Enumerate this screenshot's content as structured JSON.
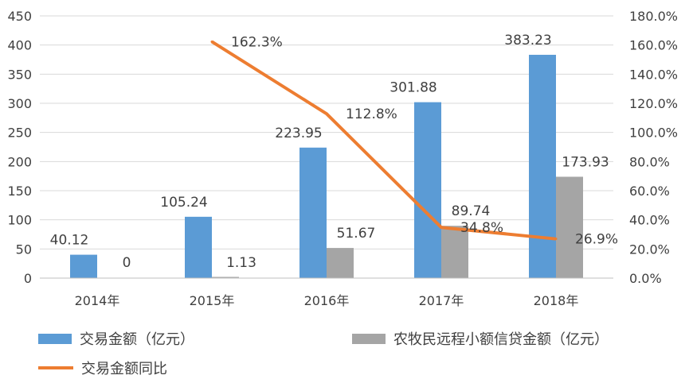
{
  "chart_data": {
    "type": "bar",
    "categories": [
      "2014年",
      "2015年",
      "2016年",
      "2017年",
      "2018年"
    ],
    "series": [
      {
        "name": "交易金额（亿元）",
        "type": "bar",
        "axis": "left",
        "color": "#5b9bd5",
        "values": [
          40.12,
          105.24,
          223.95,
          301.88,
          383.23
        ],
        "labels": [
          "40.12",
          "105.24",
          "223.95",
          "301.88",
          "383.23"
        ]
      },
      {
        "name": "农牧民远程小额信贷金额（亿元）",
        "type": "bar",
        "axis": "left",
        "color": "#a5a5a5",
        "values": [
          0,
          1.13,
          51.67,
          89.74,
          173.93
        ],
        "labels": [
          "0",
          "1.13",
          "51.67",
          "89.74",
          "173.93"
        ]
      },
      {
        "name": "交易金额同比",
        "type": "line",
        "axis": "right",
        "color": "#ed7d31",
        "values": [
          null,
          162.3,
          112.8,
          34.8,
          26.9
        ],
        "labels": [
          "",
          "162.3%",
          "112.8%",
          "34.8%",
          "26.9%"
        ]
      }
    ],
    "y_left": {
      "min": 0,
      "max": 450,
      "step": 50,
      "ticks": [
        "0",
        "50",
        "100",
        "150",
        "200",
        "250",
        "300",
        "350",
        "400",
        "450"
      ]
    },
    "y_right": {
      "min": 0,
      "max": 180,
      "step": 20,
      "ticks": [
        "0.0%",
        "20.0%",
        "40.0%",
        "60.0%",
        "80.0%",
        "100.0%",
        "120.0%",
        "140.0%",
        "160.0%",
        "180.0%"
      ]
    },
    "grid": true,
    "legend_position": "bottom"
  }
}
